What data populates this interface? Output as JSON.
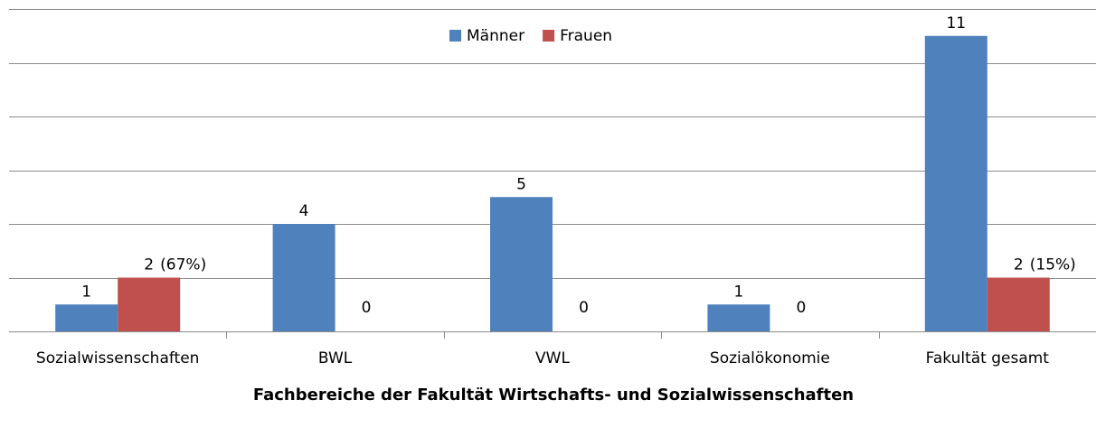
{
  "chart_data": {
    "type": "bar",
    "categories": [
      "Sozialwissenschaften",
      "BWL",
      "VWL",
      "Sozialökonomie",
      "Fakultät gesamt"
    ],
    "series": [
      {
        "name": "Männer",
        "color": "#4f81bd",
        "values": [
          1,
          4,
          5,
          1,
          11
        ]
      },
      {
        "name": "Frauen",
        "color": "#c0504d",
        "values": [
          2,
          0,
          0,
          0,
          2
        ]
      }
    ],
    "annotations": [
      "(67%)",
      null,
      null,
      null,
      "(15%)"
    ],
    "xlabel": "Fachbereiche der Fakultät Wirtschafts- und Sozialwissenschaften",
    "ylim": [
      0,
      12
    ],
    "yticks": [
      0,
      2,
      4,
      6,
      8,
      10,
      12
    ],
    "grid": true,
    "legend": "top"
  }
}
